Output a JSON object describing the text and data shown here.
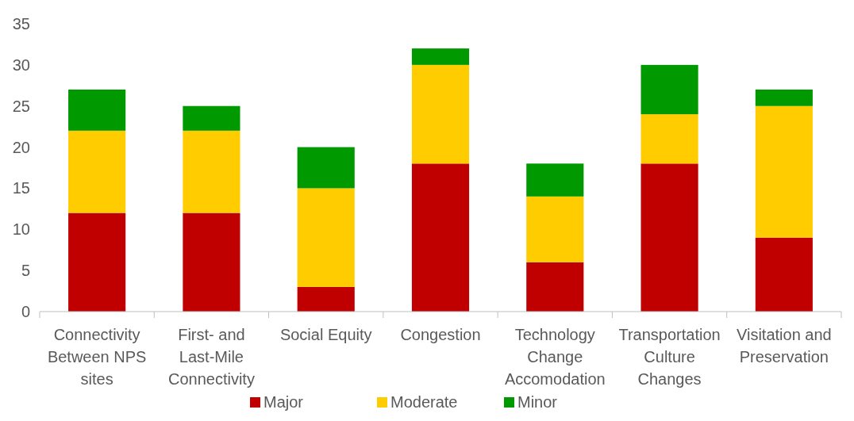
{
  "chart_data": {
    "type": "bar",
    "stacked": true,
    "categories": [
      "Connectivity Between NPS sites",
      "First- and Last-Mile Connectivity",
      "Social Equity",
      "Congestion",
      "Technology Change Accomodation",
      "Transportation Culture Changes",
      "Visitation and Preservation"
    ],
    "series": [
      {
        "name": "Major",
        "color": "#c00000",
        "values": [
          12,
          12,
          3,
          18,
          6,
          18,
          9
        ]
      },
      {
        "name": "Moderate",
        "color": "#ffcc00",
        "values": [
          10,
          10,
          12,
          12,
          8,
          6,
          16
        ]
      },
      {
        "name": "Minor",
        "color": "#009900",
        "values": [
          5,
          3,
          5,
          2,
          4,
          6,
          2
        ]
      }
    ],
    "ylim": [
      0,
      35
    ],
    "yticks": [
      0,
      5,
      10,
      15,
      20,
      25,
      30,
      35
    ],
    "grid": false,
    "legend": "bottom"
  }
}
